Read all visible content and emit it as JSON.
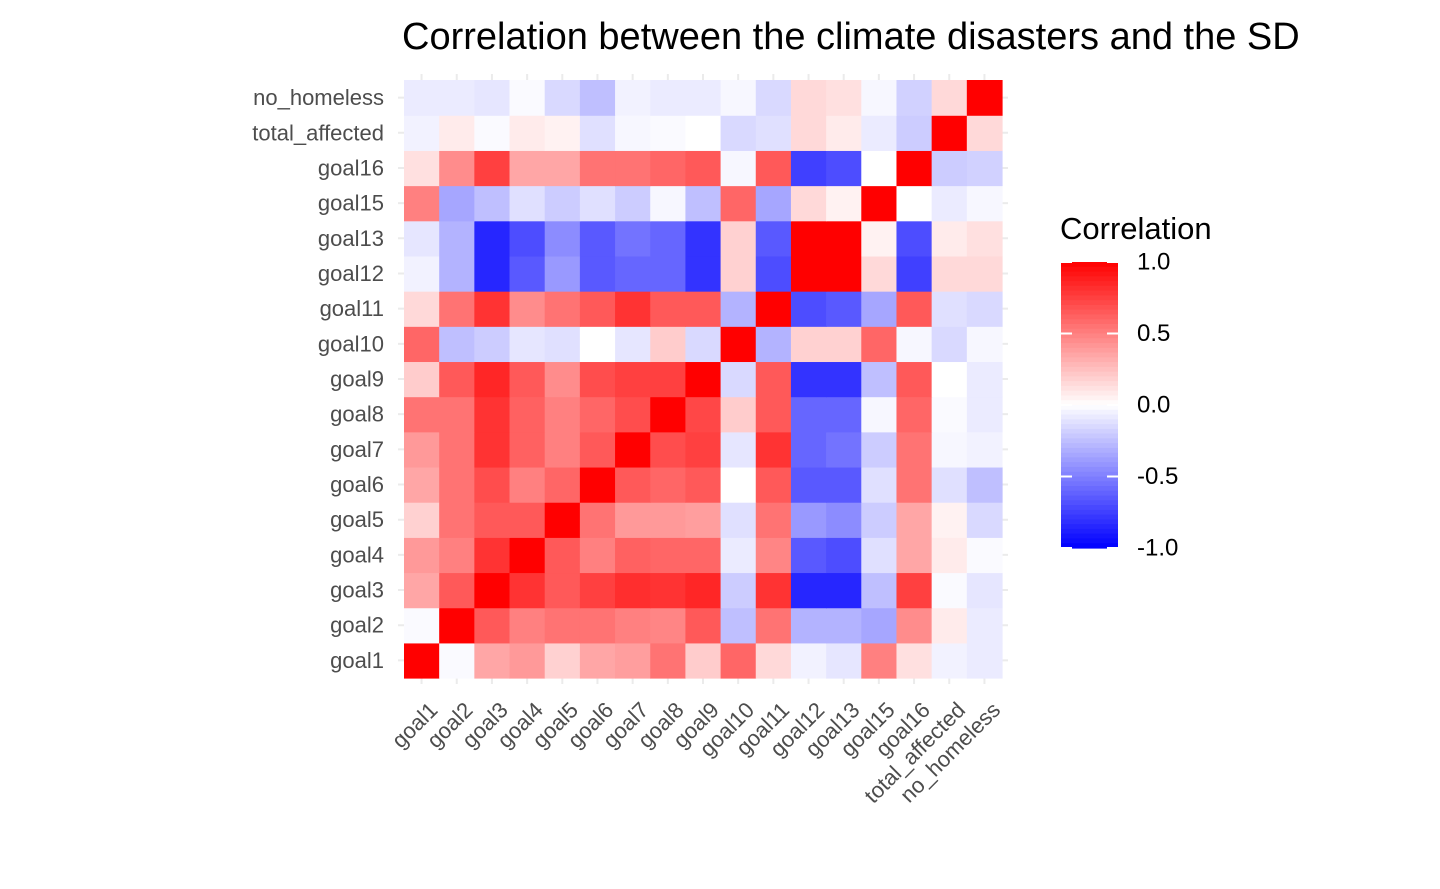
{
  "chart_data": {
    "type": "heatmap",
    "title": "Correlation between the climate disasters and the SD",
    "xlabel": "",
    "ylabel": "",
    "variables": [
      "goal1",
      "goal2",
      "goal3",
      "goal4",
      "goal5",
      "goal6",
      "goal7",
      "goal8",
      "goal9",
      "goal10",
      "goal11",
      "goal12",
      "goal13",
      "goal15",
      "goal16",
      "total_affected",
      "no_homeless"
    ],
    "matrix": [
      [
        1.0,
        -0.02,
        0.35,
        0.4,
        0.18,
        0.35,
        0.38,
        0.55,
        0.2,
        0.6,
        0.15,
        -0.05,
        -0.1,
        0.5,
        0.12,
        -0.05,
        -0.08
      ],
      [
        -0.02,
        1.0,
        0.65,
        0.5,
        0.55,
        0.55,
        0.5,
        0.48,
        0.65,
        -0.25,
        0.55,
        -0.3,
        -0.3,
        -0.35,
        0.45,
        0.08,
        -0.08
      ],
      [
        0.35,
        0.65,
        1.0,
        0.8,
        0.65,
        0.75,
        0.82,
        0.8,
        0.85,
        -0.2,
        0.8,
        -0.85,
        -0.85,
        -0.25,
        0.75,
        -0.02,
        -0.1
      ],
      [
        0.4,
        0.5,
        0.8,
        1.0,
        0.65,
        0.5,
        0.62,
        0.6,
        0.6,
        -0.08,
        0.48,
        -0.65,
        -0.7,
        -0.12,
        0.35,
        0.08,
        -0.02
      ],
      [
        0.18,
        0.55,
        0.65,
        0.65,
        1.0,
        0.55,
        0.4,
        0.4,
        0.38,
        -0.12,
        0.55,
        -0.4,
        -0.45,
        -0.2,
        0.35,
        0.05,
        -0.15
      ],
      [
        0.35,
        0.55,
        0.7,
        0.5,
        0.6,
        1.0,
        0.65,
        0.6,
        0.65,
        0.0,
        0.65,
        -0.65,
        -0.65,
        -0.12,
        0.55,
        -0.12,
        -0.25
      ],
      [
        0.4,
        0.55,
        0.8,
        0.62,
        0.5,
        0.65,
        1.0,
        0.7,
        0.75,
        -0.1,
        0.8,
        -0.6,
        -0.55,
        -0.2,
        0.55,
        -0.03,
        -0.05
      ],
      [
        0.55,
        0.55,
        0.8,
        0.62,
        0.5,
        0.6,
        0.7,
        1.0,
        0.72,
        0.2,
        0.65,
        -0.6,
        -0.6,
        -0.03,
        0.6,
        -0.02,
        -0.08
      ],
      [
        0.2,
        0.65,
        0.85,
        0.65,
        0.45,
        0.7,
        0.75,
        0.75,
        1.0,
        -0.15,
        0.65,
        -0.8,
        -0.8,
        -0.25,
        0.65,
        0.0,
        -0.08
      ],
      [
        0.6,
        -0.25,
        -0.2,
        -0.1,
        -0.12,
        0.0,
        -0.1,
        0.2,
        -0.15,
        1.0,
        -0.3,
        0.18,
        0.18,
        0.6,
        -0.03,
        -0.15,
        -0.03
      ],
      [
        0.15,
        0.55,
        0.8,
        0.45,
        0.55,
        0.65,
        0.8,
        0.65,
        0.65,
        -0.3,
        1.0,
        -0.7,
        -0.65,
        -0.35,
        0.65,
        -0.12,
        -0.15
      ],
      [
        -0.05,
        -0.3,
        -0.85,
        -0.65,
        -0.4,
        -0.65,
        -0.6,
        -0.6,
        -0.8,
        0.18,
        -0.7,
        1.0,
        1.0,
        0.15,
        -0.75,
        0.15,
        0.15
      ],
      [
        -0.1,
        -0.3,
        -0.85,
        -0.7,
        -0.45,
        -0.65,
        -0.55,
        -0.6,
        -0.8,
        0.18,
        -0.65,
        1.0,
        1.0,
        0.05,
        -0.7,
        0.08,
        0.12
      ],
      [
        0.5,
        -0.35,
        -0.25,
        -0.12,
        -0.2,
        -0.12,
        -0.2,
        -0.03,
        -0.25,
        0.6,
        -0.35,
        0.15,
        0.05,
        1.0,
        0.0,
        -0.08,
        -0.03
      ],
      [
        0.12,
        0.45,
        0.75,
        0.35,
        0.35,
        0.55,
        0.55,
        0.6,
        0.65,
        -0.03,
        0.65,
        -0.75,
        -0.7,
        0.0,
        1.0,
        -0.2,
        -0.18
      ],
      [
        -0.05,
        0.08,
        -0.02,
        0.08,
        0.05,
        -0.12,
        -0.03,
        -0.02,
        0.0,
        -0.15,
        -0.12,
        0.15,
        0.08,
        -0.08,
        -0.2,
        1.0,
        0.15
      ],
      [
        -0.08,
        -0.08,
        -0.1,
        -0.02,
        -0.15,
        -0.25,
        -0.05,
        -0.08,
        -0.08,
        -0.03,
        -0.15,
        0.15,
        0.12,
        -0.03,
        -0.18,
        0.15,
        1.0
      ]
    ],
    "color_scale": {
      "low": "#0000FF",
      "mid": "#FFFFFF",
      "high": "#FF0000",
      "limits": [
        -1,
        1
      ]
    },
    "legend": {
      "title": "Correlation",
      "position": "right",
      "breaks": [
        1.0,
        0.5,
        0.0,
        -0.5,
        -1.0
      ],
      "labels": [
        "1.0",
        "0.5",
        "0.0",
        "-0.5",
        "-1.0"
      ]
    },
    "grid": true
  }
}
